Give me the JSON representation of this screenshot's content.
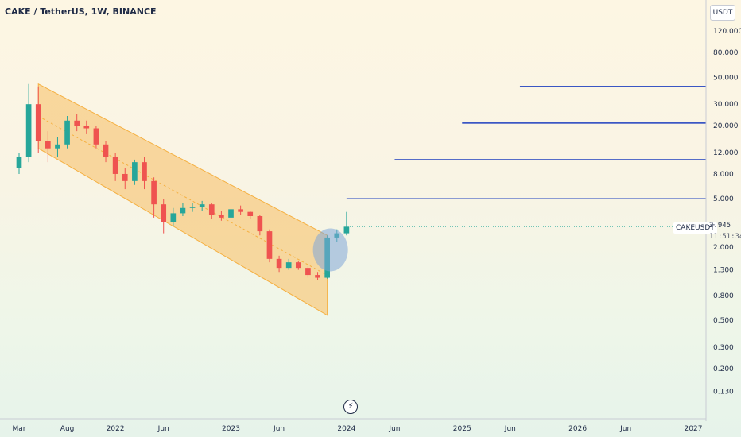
{
  "header": {
    "title": "CAKE / TetherUS, 1W, BINANCE"
  },
  "price_scale": {
    "unit": "USDT",
    "labels": [
      "120.000",
      "80.000",
      "50.000",
      "30.000",
      "20.000",
      "12.000",
      "8.000",
      "5.000",
      "2.000",
      "1.300",
      "0.800",
      "0.500",
      "0.300",
      "0.200",
      "0.130"
    ]
  },
  "time_scale": {
    "labels": [
      "Mar",
      "Aug",
      "2022",
      "Jun",
      "2023",
      "Jun",
      "2024",
      "Jun",
      "2025",
      "Jun",
      "2026",
      "Jun",
      "2027"
    ]
  },
  "symbol_tag": "CAKEUSDT",
  "last_price": "2.945",
  "bar_countdown": "11:51:34",
  "colors": {
    "up": "#26a69a",
    "down": "#ef5350",
    "channel_fill": "#f7c676",
    "channel_line": "#f5b041",
    "level_line": "#1f3fbf",
    "ellipse": "#7fa6d9"
  },
  "chart_data": {
    "type": "candlestick",
    "y_scale": "log",
    "ylim": [
      0.1,
      160
    ],
    "xlim": [
      "2021-03",
      "2027-01"
    ],
    "series": [
      {
        "date": "2021-03",
        "open": 9,
        "high": 12,
        "low": 8,
        "close": 11
      },
      {
        "date": "2021-04",
        "open": 11,
        "high": 44,
        "low": 10,
        "close": 30
      },
      {
        "date": "2021-05",
        "open": 30,
        "high": 42,
        "low": 12,
        "close": 15
      },
      {
        "date": "2021-06",
        "open": 15,
        "high": 18,
        "low": 10,
        "close": 13
      },
      {
        "date": "2021-07",
        "open": 13,
        "high": 16,
        "low": 11,
        "close": 14
      },
      {
        "date": "2021-08",
        "open": 14,
        "high": 24,
        "low": 13,
        "close": 22
      },
      {
        "date": "2021-09",
        "open": 22,
        "high": 25,
        "low": 18,
        "close": 20
      },
      {
        "date": "2021-10",
        "open": 20,
        "high": 22,
        "low": 17,
        "close": 19
      },
      {
        "date": "2021-11",
        "open": 19,
        "high": 20,
        "low": 13,
        "close": 14
      },
      {
        "date": "2021-12",
        "open": 14,
        "high": 15,
        "low": 10,
        "close": 11
      },
      {
        "date": "2022-01",
        "open": 11,
        "high": 12,
        "low": 7,
        "close": 8
      },
      {
        "date": "2022-02",
        "open": 8,
        "high": 9,
        "low": 6,
        "close": 7
      },
      {
        "date": "2022-03",
        "open": 7,
        "high": 10.5,
        "low": 6.5,
        "close": 10
      },
      {
        "date": "2022-04",
        "open": 10,
        "high": 11,
        "low": 6,
        "close": 7
      },
      {
        "date": "2022-05",
        "open": 7,
        "high": 7.5,
        "low": 3.5,
        "close": 4.5
      },
      {
        "date": "2022-06",
        "open": 4.5,
        "high": 5,
        "low": 2.6,
        "close": 3.2
      },
      {
        "date": "2022-07",
        "open": 3.2,
        "high": 4.2,
        "low": 3,
        "close": 3.8
      },
      {
        "date": "2022-08",
        "open": 3.8,
        "high": 4.6,
        "low": 3.6,
        "close": 4.2
      },
      {
        "date": "2022-09",
        "open": 4.2,
        "high": 4.6,
        "low": 3.9,
        "close": 4.3
      },
      {
        "date": "2022-10",
        "open": 4.3,
        "high": 4.8,
        "low": 4.0,
        "close": 4.5
      },
      {
        "date": "2022-11",
        "open": 4.5,
        "high": 4.6,
        "low": 3.4,
        "close": 3.7
      },
      {
        "date": "2022-12",
        "open": 3.7,
        "high": 4.0,
        "low": 3.3,
        "close": 3.5
      },
      {
        "date": "2023-01",
        "open": 3.5,
        "high": 4.3,
        "low": 3.4,
        "close": 4.1
      },
      {
        "date": "2023-02",
        "open": 4.1,
        "high": 4.4,
        "low": 3.7,
        "close": 3.9
      },
      {
        "date": "2023-03",
        "open": 3.9,
        "high": 4.0,
        "low": 3.4,
        "close": 3.6
      },
      {
        "date": "2023-04",
        "open": 3.6,
        "high": 3.7,
        "low": 2.5,
        "close": 2.7
      },
      {
        "date": "2023-05",
        "open": 2.7,
        "high": 2.8,
        "low": 1.5,
        "close": 1.6
      },
      {
        "date": "2023-06",
        "open": 1.6,
        "high": 1.7,
        "low": 1.25,
        "close": 1.35
      },
      {
        "date": "2023-07",
        "open": 1.35,
        "high": 1.6,
        "low": 1.3,
        "close": 1.5
      },
      {
        "date": "2023-08",
        "open": 1.5,
        "high": 1.55,
        "low": 1.3,
        "close": 1.35
      },
      {
        "date": "2023-09",
        "open": 1.35,
        "high": 1.4,
        "low": 1.12,
        "close": 1.18
      },
      {
        "date": "2023-10",
        "open": 1.18,
        "high": 1.25,
        "low": 1.07,
        "close": 1.12
      },
      {
        "date": "2023-11",
        "open": 1.12,
        "high": 2.5,
        "low": 1.1,
        "close": 2.4
      },
      {
        "date": "2023-12",
        "open": 2.4,
        "high": 2.8,
        "low": 2.2,
        "close": 2.6
      },
      {
        "date": "2024-01",
        "open": 2.6,
        "high": 3.9,
        "low": 2.5,
        "close": 2.945
      }
    ],
    "horizontal_levels": [
      {
        "price": 5.0,
        "from": "2024-01"
      },
      {
        "price": 10.5,
        "from": "2024-06"
      },
      {
        "price": 21,
        "from": "2025-01"
      },
      {
        "price": 42,
        "from": "2025-07"
      }
    ],
    "channel": {
      "upper": [
        [
          "2021-05",
          44
        ],
        [
          "2023-11",
          2.5
        ]
      ],
      "lower": [
        [
          "2021-05",
          13
        ],
        [
          "2023-11",
          0.55
        ]
      ]
    },
    "highlight": {
      "date": "2023-11",
      "price": 1.9
    },
    "grid": false
  }
}
